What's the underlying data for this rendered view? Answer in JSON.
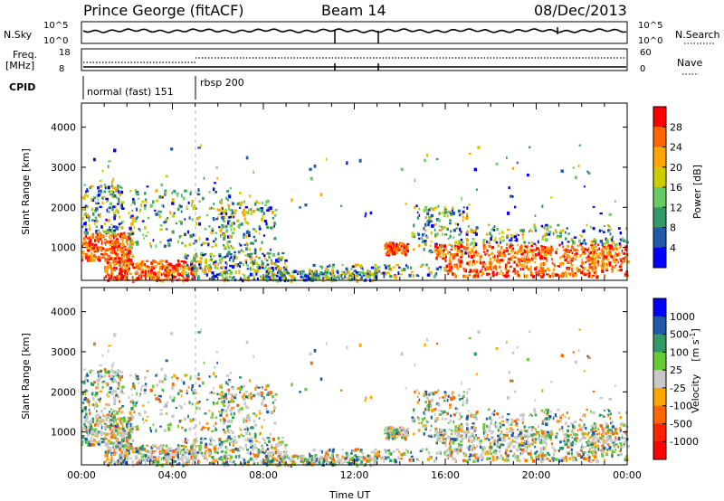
{
  "header": {
    "station": "Prince George (fitACF)",
    "beam": "Beam 14",
    "date": "08/Dec/2013"
  },
  "panels": {
    "nsky_label": "N.Sky",
    "nsearch_label": "N.Search",
    "freq_label_1": "Freq.",
    "freq_label_2": "[MHz]",
    "nave_label": "Nave",
    "cpid_label": "CPID",
    "nsky_left_ticks": [
      "10^5",
      "10^0"
    ],
    "nsky_right_ticks": [
      "10^5",
      "10^0"
    ],
    "freq_left_ticks": [
      "18",
      "8"
    ],
    "freq_right_ticks": [
      "60",
      "0"
    ],
    "cpid_segments": [
      {
        "label": "normal (fast) 151",
        "start_hour": 0
      },
      {
        "label": "rbsp 200",
        "start_hour": 5.0
      }
    ]
  },
  "chart_data": [
    {
      "type": "heatmap",
      "name": "Power [dB]",
      "ylabel": "Slant Range [km]",
      "ylim": [
        180,
        4600
      ],
      "yticks": [
        "1000",
        "2000",
        "3000",
        "4000"
      ],
      "xlim": [
        0,
        24
      ],
      "colorbar_label": "Power [dB]",
      "colorbar_ticks": [
        "28",
        "24",
        "20",
        "16",
        "12",
        "8",
        "4"
      ],
      "colorbar_colors": [
        "#ff0000",
        "#ff6600",
        "#ffa500",
        "#cccc00",
        "#66cc66",
        "#339966",
        "#1e5aa8",
        "#0000ff"
      ]
    },
    {
      "type": "heatmap",
      "name": "Velocity [m s^-1]",
      "ylabel": "Slant Range [km]",
      "ylim": [
        180,
        4600
      ],
      "yticks": [
        "1000",
        "2000",
        "3000",
        "4000"
      ],
      "xlim": [
        0,
        24
      ],
      "xlabel": "Time UT",
      "xticks": [
        "00:00",
        "04:00",
        "08:00",
        "12:00",
        "16:00",
        "20:00",
        "00:00"
      ],
      "colorbar_label_1": "Velocity",
      "colorbar_label_2": "[m s",
      "colorbar_label_sup": "-1",
      "colorbar_label_3": "]",
      "colorbar_ticks": [
        "1000",
        "500",
        "100",
        "25",
        "-25",
        "-100",
        "-500",
        "-1000"
      ],
      "colorbar_colors": [
        "#0000ff",
        "#1e5aa8",
        "#339966",
        "#66cc33",
        "#c8c8c8",
        "#ffa500",
        "#ff6600",
        "#ff2200",
        "#ff0000"
      ]
    }
  ]
}
